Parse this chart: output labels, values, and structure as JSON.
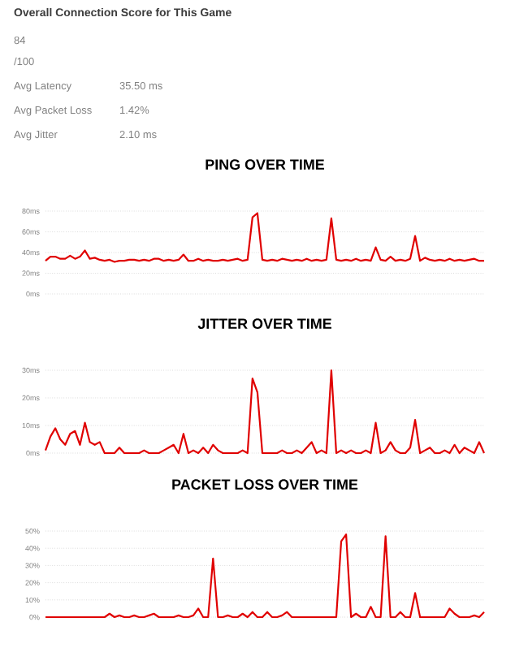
{
  "chart_data": [
    {
      "type": "other",
      "title": "Overall Connection Score for This Game",
      "annotations": [
        "84",
        "/100",
        "Avg Latency",
        "35.50 ms",
        "Avg Packet Loss",
        "1.42%",
        "Avg Jitter",
        "2.10 ms"
      ]
    },
    {
      "type": "line",
      "title": "PING OVER TIME",
      "color": "#e00000",
      "grid": "y",
      "tick_labels": "y",
      "ylim": [
        0,
        80
      ],
      "yticks": [
        {
          "value": 0,
          "label": "0ms"
        },
        {
          "value": 20,
          "label": "20ms"
        },
        {
          "value": 40,
          "label": "40ms"
        },
        {
          "value": 60,
          "label": "60ms"
        },
        {
          "value": 80,
          "label": "80ms"
        }
      ],
      "categories": [
        null,
        null,
        null,
        null,
        null,
        null,
        null,
        null,
        null,
        null,
        null,
        null,
        null,
        null,
        null,
        null,
        null,
        null,
        null,
        null,
        null,
        null,
        null,
        null,
        null,
        null,
        null,
        null,
        null,
        null,
        null,
        null,
        null,
        null,
        null,
        null,
        null,
        null,
        null,
        null,
        null,
        null,
        null,
        null,
        null,
        null,
        null,
        null,
        null,
        null,
        null,
        null,
        null,
        null,
        null,
        null,
        null,
        null,
        null,
        null,
        null,
        null,
        null,
        null,
        null,
        null,
        null,
        null,
        null,
        null,
        null,
        null,
        null,
        null,
        null,
        null,
        null,
        null,
        null,
        null,
        null,
        null,
        null,
        null,
        null,
        null,
        null,
        null,
        null,
        null
      ],
      "values": [
        32,
        36,
        36,
        34,
        34,
        37,
        34,
        36,
        42,
        34,
        35,
        33,
        32,
        33,
        31,
        32,
        32,
        33,
        33,
        32,
        33,
        32,
        34,
        34,
        32,
        33,
        32,
        33,
        38,
        32,
        32,
        34,
        32,
        33,
        32,
        32,
        33,
        32,
        33,
        34,
        32,
        33,
        74,
        78,
        33,
        32,
        33,
        32,
        34,
        33,
        32,
        33,
        32,
        34,
        32,
        33,
        32,
        33,
        73,
        33,
        32,
        33,
        32,
        34,
        32,
        33,
        32,
        45,
        33,
        32,
        36,
        32,
        33,
        32,
        34,
        56,
        32,
        35,
        33,
        32,
        33,
        32,
        34,
        32,
        33,
        32,
        33,
        34,
        32,
        32
      ]
    },
    {
      "type": "line",
      "title": "JITTER OVER TIME",
      "color": "#e00000",
      "grid": "y",
      "tick_labels": "y",
      "ylim": [
        0,
        30
      ],
      "yticks": [
        {
          "value": 0,
          "label": "0ms"
        },
        {
          "value": 10,
          "label": "10ms"
        },
        {
          "value": 20,
          "label": "20ms"
        },
        {
          "value": 30,
          "label": "30ms"
        }
      ],
      "categories": [
        null,
        null,
        null,
        null,
        null,
        null,
        null,
        null,
        null,
        null,
        null,
        null,
        null,
        null,
        null,
        null,
        null,
        null,
        null,
        null,
        null,
        null,
        null,
        null,
        null,
        null,
        null,
        null,
        null,
        null,
        null,
        null,
        null,
        null,
        null,
        null,
        null,
        null,
        null,
        null,
        null,
        null,
        null,
        null,
        null,
        null,
        null,
        null,
        null,
        null,
        null,
        null,
        null,
        null,
        null,
        null,
        null,
        null,
        null,
        null,
        null,
        null,
        null,
        null,
        null,
        null,
        null,
        null,
        null,
        null,
        null,
        null,
        null,
        null,
        null,
        null,
        null,
        null,
        null,
        null,
        null,
        null,
        null,
        null,
        null,
        null,
        null,
        null,
        null,
        null
      ],
      "values": [
        1,
        6,
        9,
        5,
        3,
        7,
        8,
        3,
        11,
        4,
        3,
        4,
        0,
        0,
        0,
        2,
        0,
        0,
        0,
        0,
        1,
        0,
        0,
        0,
        1,
        2,
        3,
        0,
        7,
        0,
        1,
        0,
        2,
        0,
        3,
        1,
        0,
        0,
        0,
        0,
        1,
        0,
        27,
        22,
        0,
        0,
        0,
        0,
        1,
        0,
        0,
        1,
        0,
        2,
        4,
        0,
        1,
        0,
        30,
        0,
        1,
        0,
        1,
        0,
        0,
        1,
        0,
        11,
        0,
        1,
        4,
        1,
        0,
        0,
        2,
        12,
        0,
        1,
        2,
        0,
        0,
        1,
        0,
        3,
        0,
        2,
        1,
        0,
        4,
        0
      ]
    },
    {
      "type": "line",
      "title": "PACKET LOSS OVER TIME",
      "color": "#e00000",
      "grid": "y",
      "tick_labels": "y",
      "ylim": [
        0,
        50
      ],
      "yticks": [
        {
          "value": 0,
          "label": "0%"
        },
        {
          "value": 10,
          "label": "10%"
        },
        {
          "value": 20,
          "label": "20%"
        },
        {
          "value": 30,
          "label": "30%"
        },
        {
          "value": 40,
          "label": "40%"
        },
        {
          "value": 50,
          "label": "50%"
        }
      ],
      "categories": [
        null,
        null,
        null,
        null,
        null,
        null,
        null,
        null,
        null,
        null,
        null,
        null,
        null,
        null,
        null,
        null,
        null,
        null,
        null,
        null,
        null,
        null,
        null,
        null,
        null,
        null,
        null,
        null,
        null,
        null,
        null,
        null,
        null,
        null,
        null,
        null,
        null,
        null,
        null,
        null,
        null,
        null,
        null,
        null,
        null,
        null,
        null,
        null,
        null,
        null,
        null,
        null,
        null,
        null,
        null,
        null,
        null,
        null,
        null,
        null,
        null,
        null,
        null,
        null,
        null,
        null,
        null,
        null,
        null,
        null,
        null,
        null,
        null,
        null,
        null,
        null,
        null,
        null,
        null,
        null,
        null,
        null,
        null,
        null,
        null,
        null,
        null,
        null,
        null,
        null
      ],
      "values": [
        0,
        0,
        0,
        0,
        0,
        0,
        0,
        0,
        0,
        0,
        0,
        0,
        0,
        2,
        0,
        1,
        0,
        0,
        1,
        0,
        0,
        1,
        2,
        0,
        0,
        0,
        0,
        1,
        0,
        0,
        1,
        5,
        0,
        0,
        34,
        0,
        0,
        1,
        0,
        0,
        2,
        0,
        3,
        0,
        0,
        3,
        0,
        0,
        1,
        3,
        0,
        0,
        0,
        0,
        0,
        0,
        0,
        0,
        0,
        0,
        44,
        48,
        0,
        2,
        0,
        0,
        6,
        0,
        0,
        47,
        0,
        0,
        3,
        0,
        0,
        14,
        0,
        0,
        0,
        0,
        0,
        0,
        5,
        2,
        0,
        0,
        0,
        1,
        0,
        3
      ]
    }
  ]
}
